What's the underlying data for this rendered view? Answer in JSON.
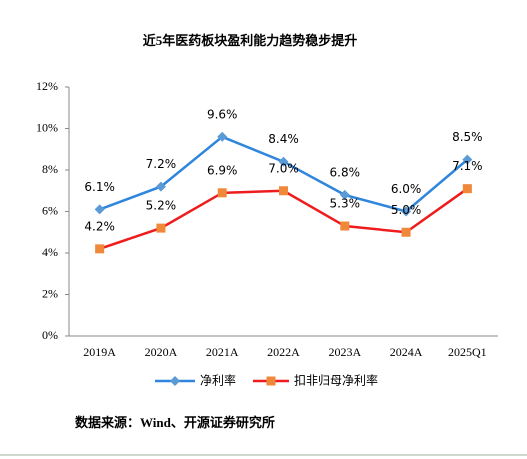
{
  "chart_data": {
    "type": "line",
    "title": "近5年医药板块盈利能力趋势稳步提升",
    "categories": [
      "2019A",
      "2020A",
      "2021A",
      "2022A",
      "2023A",
      "2024A",
      "2025Q1"
    ],
    "series": [
      {
        "name": "净利率",
        "color": "#2f86dc",
        "marker_color": "#5b9bd5",
        "marker": "diamond",
        "values": [
          6.1,
          7.2,
          9.6,
          8.4,
          6.8,
          6.0,
          8.5
        ],
        "value_labels": [
          "6.1%",
          "7.2%",
          "9.6%",
          "8.4%",
          "6.8%",
          "6.0%",
          "8.5%"
        ]
      },
      {
        "name": "扣非归母净利率",
        "color": "#ee1c1c",
        "marker_color": "#f0883a",
        "marker": "square",
        "values": [
          4.2,
          5.2,
          6.9,
          7.0,
          5.3,
          5.0,
          7.1
        ],
        "value_labels": [
          "4.2%",
          "5.2%",
          "6.9%",
          "7.0%",
          "5.3%",
          "5.0%",
          "7.1%"
        ]
      }
    ],
    "ylim": [
      0,
      12
    ],
    "yticks": [
      {
        "value": 0,
        "label": "0%"
      },
      {
        "value": 2,
        "label": "2%"
      },
      {
        "value": 4,
        "label": "4%"
      },
      {
        "value": 6,
        "label": "6%"
      },
      {
        "value": 8,
        "label": "8%"
      },
      {
        "value": 10,
        "label": "10%"
      },
      {
        "value": 12,
        "label": "12%"
      }
    ],
    "grid": false,
    "legend": "bottom",
    "source": "数据来源：Wind、开源证券研究所"
  }
}
